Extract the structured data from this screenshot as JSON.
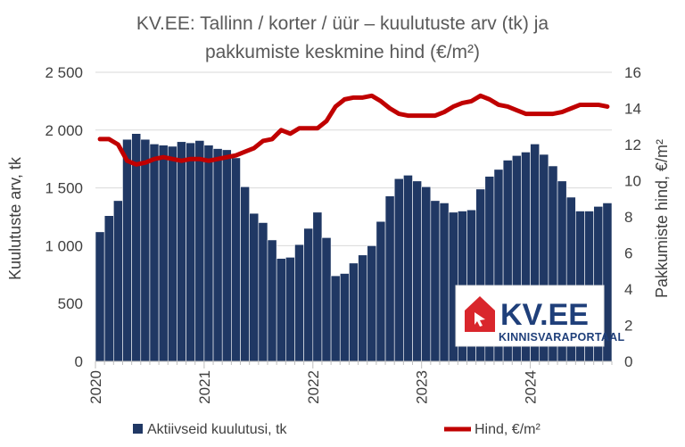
{
  "title_line1": "KV.EE: Tallinn / korter / üür – kuulutuste arv (tk) ja",
  "title_line2": "pakkumiste keskmine hind (€/m²)",
  "colors": {
    "bar": "#203864",
    "bar_stroke": "#ffffff",
    "line": "#c00000",
    "grid": "#d9d9d9",
    "logo_red": "#d9262c",
    "logo_blue": "#1f3f7a"
  },
  "logo": {
    "name": "KV.EE",
    "subtitle": "KINNISVARAPORTAAL"
  },
  "chart_data": {
    "type": "bar+line",
    "x_labels": [
      "2020",
      "2021",
      "2022",
      "2023",
      "2024"
    ],
    "x_start": "2020-01",
    "frequency": "monthly",
    "yleft_label": "Kuulutuste arv, tk",
    "yright_label": "Pakkumiste hind, €/m²",
    "yleft_lim": [
      0,
      2500
    ],
    "yleft_ticks": [
      "0",
      "500",
      "1 000",
      "1 500",
      "2 000",
      "2 500"
    ],
    "yright_lim": [
      0,
      16
    ],
    "yright_ticks": [
      "0",
      "2",
      "4",
      "6",
      "8",
      "10",
      "12",
      "14",
      "16"
    ],
    "grid": true,
    "legend_position": "bottom",
    "series": [
      {
        "name": "Aktiivseid kuulutusi, tk",
        "type": "bar",
        "axis": "left",
        "values": [
          1120,
          1260,
          1390,
          1920,
          1970,
          1920,
          1880,
          1870,
          1860,
          1900,
          1890,
          1910,
          1870,
          1840,
          1830,
          1760,
          1510,
          1280,
          1200,
          1050,
          890,
          900,
          1010,
          1150,
          1290,
          1070,
          740,
          760,
          850,
          920,
          1000,
          1210,
          1430,
          1580,
          1610,
          1560,
          1510,
          1390,
          1370,
          1290,
          1300,
          1310,
          1490,
          1600,
          1660,
          1740,
          1780,
          1810,
          1880,
          1790,
          1690,
          1560,
          1420,
          1300,
          1300,
          1340,
          1370
        ]
      },
      {
        "name": "Hind, €/m²",
        "type": "line",
        "axis": "right",
        "values": [
          12.3,
          12.3,
          12.0,
          11.1,
          10.9,
          11.0,
          11.2,
          11.3,
          11.2,
          11.1,
          11.2,
          11.2,
          11.1,
          11.2,
          11.3,
          11.4,
          11.6,
          11.8,
          12.2,
          12.3,
          12.8,
          12.6,
          12.9,
          12.9,
          12.9,
          13.3,
          14.1,
          14.5,
          14.6,
          14.6,
          14.7,
          14.4,
          14.0,
          13.7,
          13.6,
          13.6,
          13.6,
          13.6,
          13.8,
          14.1,
          14.3,
          14.4,
          14.7,
          14.5,
          14.2,
          14.1,
          13.9,
          13.7,
          13.7,
          13.7,
          13.7,
          13.8,
          14.0,
          14.2,
          14.2,
          14.2,
          14.1
        ]
      }
    ]
  }
}
